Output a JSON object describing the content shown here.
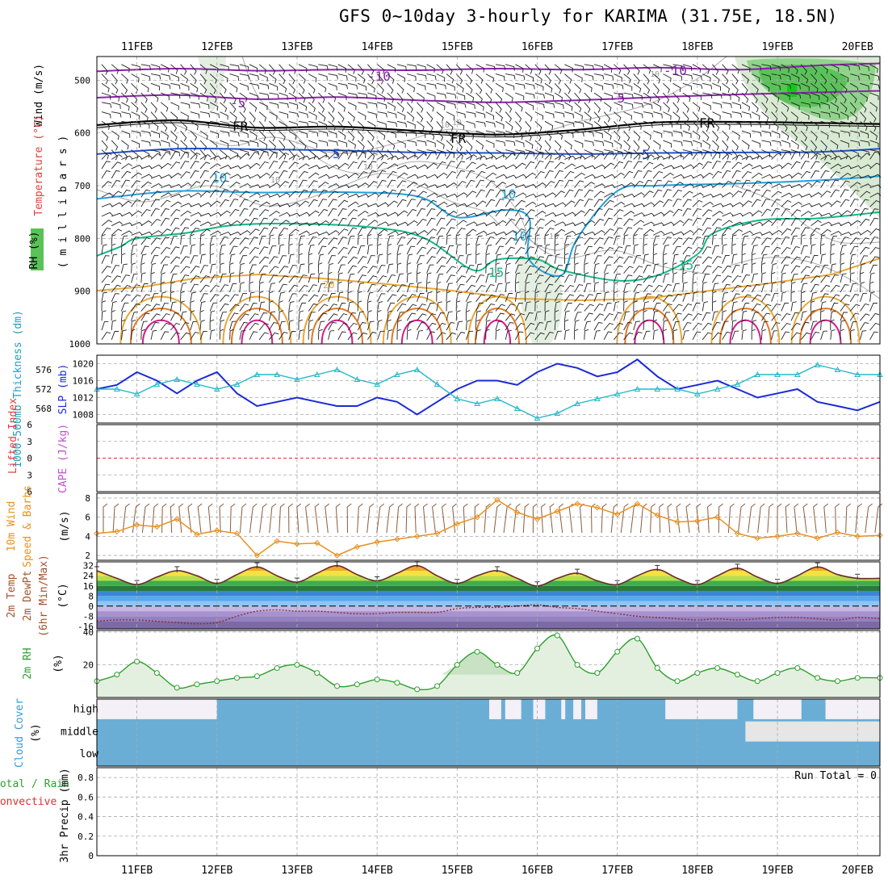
{
  "chart_data": {
    "type": "line",
    "title": "GFS 0~10day 3-hourly for KARIMA (31.75E, 18.5N)",
    "x_dates": [
      "11FEB",
      "12FEB",
      "13FEB",
      "14FEB",
      "15FEB",
      "16FEB",
      "17FEB",
      "18FEB",
      "19FEB",
      "20FEB"
    ],
    "x_range_days": [
      10.5,
      20.28
    ],
    "panels": {
      "upper_air": {
        "ylabel": [
          "RH (%)",
          "Temperature (°C)",
          "Wind (m/s)"
        ],
        "ylabel_right_text": "(millibars)",
        "y_ticks": [
          500,
          600,
          700,
          800,
          900,
          1000
        ],
        "y_range": [
          455,
          1000
        ],
        "isotherm_labels": [
          "-10",
          "-5",
          "FR",
          "5",
          "10",
          "15"
        ],
        "rh_contour_labels": [
          "10"
        ],
        "isotherms": [
          {
            "label": "-10",
            "color": "#8b22aa",
            "points": [
              [
                10.5,
                483
              ],
              [
                11.5,
                478
              ],
              [
                12.5,
                482
              ],
              [
                13.5,
                480
              ],
              [
                14.5,
                481
              ],
              [
                15.5,
                478
              ],
              [
                16.5,
                480
              ],
              [
                17.5,
                476
              ],
              [
                18.5,
                480
              ],
              [
                19.5,
                472
              ],
              [
                20.28,
                468
              ]
            ]
          },
          {
            "label": "-5",
            "color": "#8b22aa",
            "points": [
              [
                10.5,
                533
              ],
              [
                11.5,
                528
              ],
              [
                12.5,
                536
              ],
              [
                13.5,
                532
              ],
              [
                14.5,
                538
              ],
              [
                15.5,
                542
              ],
              [
                16.5,
                538
              ],
              [
                17.5,
                532
              ],
              [
                18.5,
                527
              ],
              [
                19.5,
                523
              ],
              [
                20.28,
                520
              ]
            ]
          },
          {
            "label": "FR",
            "color": "#000000",
            "points": [
              [
                10.5,
                585
              ],
              [
                11.5,
                576
              ],
              [
                12.5,
                590
              ],
              [
                13.5,
                588
              ],
              [
                14.5,
                596
              ],
              [
                15.5,
                603
              ],
              [
                16.5,
                594
              ],
              [
                17.5,
                580
              ],
              [
                18.5,
                579
              ],
              [
                19.5,
                581
              ],
              [
                20.28,
                583
              ]
            ]
          },
          {
            "label": "5",
            "color": "#1f4fcf",
            "points": [
              [
                10.5,
                640
              ],
              [
                11.5,
                630
              ],
              [
                12.5,
                631
              ],
              [
                13.5,
                633
              ],
              [
                14.5,
                637
              ],
              [
                15.5,
                638
              ],
              [
                16.5,
                640
              ],
              [
                17.5,
                638
              ],
              [
                18.5,
                637
              ],
              [
                19.5,
                636
              ],
              [
                20.28,
                630
              ]
            ]
          },
          {
            "label": "10",
            "color": "#1ea0dc",
            "points": [
              [
                10.5,
                725
              ],
              [
                11.5,
                710
              ],
              [
                12.5,
                713
              ],
              [
                13.5,
                712
              ],
              [
                14.5,
                720
              ],
              [
                15.0,
                760
              ],
              [
                15.6,
                746
              ],
              [
                15.9,
                762
              ],
              [
                15.9,
                840
              ],
              [
                16.3,
                870
              ],
              [
                16.5,
                800
              ],
              [
                17.0,
                710
              ],
              [
                17.5,
                700
              ],
              [
                18.5,
                696
              ],
              [
                19.5,
                690
              ],
              [
                20.28,
                682
              ]
            ]
          },
          {
            "label": "15",
            "color": "#13b887",
            "points": [
              [
                10.5,
                833
              ],
              [
                10.8,
                815
              ],
              [
                11.0,
                800
              ],
              [
                11.6,
                790
              ],
              [
                12.2,
                775
              ],
              [
                13.0,
                772
              ],
              [
                14.0,
                780
              ],
              [
                14.6,
                800
              ],
              [
                15.2,
                860
              ],
              [
                15.5,
                840
              ],
              [
                16.0,
                840
              ],
              [
                16.3,
                860
              ],
              [
                17.0,
                880
              ],
              [
                17.5,
                870
              ],
              [
                18.0,
                830
              ],
              [
                18.2,
                790
              ],
              [
                18.8,
                765
              ],
              [
                19.5,
                762
              ],
              [
                20.28,
                750
              ]
            ]
          }
        ]
      },
      "thickness_slp": {
        "ylabel_left": "1000-500mb Thickness (dm)",
        "ylabel_right": "SLP (mb)",
        "left_ticks": [
          568,
          572,
          576
        ],
        "right_ticks": [
          1008,
          1012,
          1016,
          1020
        ],
        "slp_range": [
          1006,
          1022
        ],
        "slp_series": {
          "name": "SLP (mb)",
          "color": "#1a2ad6",
          "x": [
            10.5,
            10.75,
            11.0,
            11.25,
            11.5,
            11.75,
            12.0,
            12.25,
            12.5,
            12.75,
            13.0,
            13.25,
            13.5,
            13.75,
            14.0,
            14.25,
            14.5,
            14.75,
            15.0,
            15.25,
            15.5,
            15.75,
            16.0,
            16.25,
            16.5,
            16.75,
            17.0,
            17.25,
            17.5,
            17.75,
            18.0,
            18.25,
            18.5,
            18.75,
            19.0,
            19.25,
            19.5,
            19.75,
            20.0,
            20.28
          ],
          "values": [
            1014,
            1015,
            1018,
            1016,
            1013,
            1016,
            1018,
            1013,
            1010,
            1011,
            1012,
            1011,
            1010,
            1010,
            1012,
            1011,
            1008,
            1011,
            1014,
            1016,
            1016,
            1015,
            1018,
            1020,
            1019,
            1017,
            1018,
            1021,
            1017,
            1014,
            1015,
            1016,
            1014,
            1012,
            1013,
            1014,
            1011,
            1010,
            1009,
            1011
          ]
        },
        "thickness_series": {
          "name": "1000-500mb Thickness (dm)",
          "color": "#25b8c8",
          "x": [
            10.5,
            10.75,
            11.0,
            11.25,
            11.5,
            11.75,
            12.0,
            12.25,
            12.5,
            12.75,
            13.0,
            13.25,
            13.5,
            13.75,
            14.0,
            14.25,
            14.5,
            14.75,
            15.0,
            15.25,
            15.5,
            15.75,
            16.0,
            16.25,
            16.5,
            16.75,
            17.0,
            17.25,
            17.5,
            17.75,
            18.0,
            18.25,
            18.5,
            18.75,
            19.0,
            19.25,
            19.5,
            19.75,
            20.0,
            20.28
          ],
          "values": [
            572,
            572,
            571,
            573,
            574,
            573,
            572,
            573,
            575,
            575,
            574,
            575,
            576,
            574,
            573,
            575,
            576,
            573,
            570,
            569,
            570,
            568,
            566,
            567,
            569,
            570,
            571,
            572,
            572,
            572,
            571,
            572,
            573,
            575,
            575,
            575,
            577,
            576,
            575,
            575
          ]
        }
      },
      "cape_li": {
        "ylabel_left": "Lifted Index",
        "ylabel_right": "CAPE (J/kg)",
        "y_ticks": [
          -6,
          -3,
          0,
          3,
          6
        ],
        "y_tick_labels": [
          "6",
          "3",
          "0",
          "3",
          "6"
        ],
        "zero_line_color": "#e03030"
      },
      "wind10m": {
        "ylabel": [
          "10m Wind Speed & Barbs",
          "(m/s)"
        ],
        "y_ticks": [
          2,
          4,
          6,
          8
        ],
        "y_range": [
          1.5,
          8.5
        ],
        "series": {
          "name": "10m Wind Speed",
          "color": "#e89020",
          "x": [
            10.5,
            10.75,
            11.0,
            11.25,
            11.5,
            11.75,
            12.0,
            12.25,
            12.5,
            12.75,
            13.0,
            13.25,
            13.5,
            13.75,
            14.0,
            14.25,
            14.5,
            14.75,
            15.0,
            15.25,
            15.5,
            15.75,
            16.0,
            16.25,
            16.5,
            16.75,
            17.0,
            17.25,
            17.5,
            17.75,
            18.0,
            18.25,
            18.5,
            18.75,
            19.0,
            19.25,
            19.5,
            19.75,
            20.0,
            20.28
          ],
          "values": [
            4.3,
            4.5,
            5.2,
            5.0,
            5.8,
            4.2,
            4.6,
            4.3,
            2.0,
            3.5,
            3.2,
            3.3,
            2.0,
            2.9,
            3.4,
            3.7,
            4.0,
            4.3,
            5.3,
            6.0,
            7.8,
            6.5,
            5.8,
            6.6,
            7.4,
            7.0,
            6.3,
            7.4,
            6.2,
            5.5,
            5.6,
            6.0,
            4.3,
            3.8,
            4.0,
            4.3,
            3.8,
            4.4,
            4.0,
            4.1
          ]
        }
      },
      "temp2m": {
        "ylabel": [
          "2m Temp",
          "2m DewPt",
          "(6hr Min/Max)",
          "(°C)"
        ],
        "y_ticks": [
          -16,
          -8,
          0,
          8,
          16,
          24,
          32
        ],
        "y_range": [
          -18,
          35
        ],
        "temp_series": {
          "name": "2m Temp",
          "x": [
            10.5,
            10.75,
            11.0,
            11.25,
            11.5,
            11.75,
            12.0,
            12.25,
            12.5,
            12.75,
            13.0,
            13.25,
            13.5,
            13.75,
            14.0,
            14.25,
            14.5,
            14.75,
            15.0,
            15.25,
            15.5,
            15.75,
            16.0,
            16.25,
            16.5,
            16.75,
            17.0,
            17.25,
            17.5,
            17.75,
            18.0,
            18.25,
            18.5,
            18.75,
            19.0,
            19.25,
            19.5,
            19.75,
            20.0,
            20.28
          ],
          "values": [
            28,
            22,
            17,
            23,
            28,
            24,
            18,
            25,
            31,
            24,
            19,
            26,
            32,
            25,
            20,
            26,
            32,
            24,
            18,
            24,
            28,
            22,
            16,
            22,
            26,
            20,
            17,
            24,
            29,
            22,
            17,
            24,
            30,
            23,
            18,
            24,
            31,
            25,
            22,
            22
          ]
        },
        "dewpt_series": {
          "name": "2m DewPt",
          "x": [
            10.5,
            10.75,
            11.0,
            11.25,
            11.5,
            11.75,
            12.0,
            12.25,
            12.5,
            12.75,
            13.0,
            13.25,
            13.5,
            13.75,
            14.0,
            14.25,
            14.5,
            14.75,
            15.0,
            15.25,
            15.5,
            15.75,
            16.0,
            16.25,
            16.5,
            16.75,
            17.0,
            17.25,
            17.5,
            17.75,
            18.0,
            18.25,
            18.5,
            18.75,
            19.0,
            19.25,
            19.5,
            19.75,
            20.0,
            20.28
          ],
          "values": [
            -12,
            -11,
            -11,
            -12,
            -13,
            -14,
            -13,
            -8,
            -4,
            -3,
            -4,
            -4,
            -5,
            -6,
            -6,
            -5,
            -5,
            -5,
            -2,
            -1,
            -1,
            0,
            1,
            -1,
            -2,
            -4,
            -6,
            -8,
            -9,
            -10,
            -11,
            -10,
            -11,
            -10,
            -9,
            -9,
            -10,
            -11,
            -9,
            -10
          ]
        }
      },
      "rh2m": {
        "ylabel": [
          "2m RH",
          "(%)"
        ],
        "y_ticks": [
          20,
          40
        ],
        "y_range": [
          0,
          41
        ],
        "series": {
          "name": "2m RH",
          "color": "#2e9e2e",
          "x": [
            10.5,
            10.75,
            11.0,
            11.25,
            11.5,
            11.75,
            12.0,
            12.25,
            12.5,
            12.75,
            13.0,
            13.25,
            13.5,
            13.75,
            14.0,
            14.25,
            14.5,
            14.75,
            15.0,
            15.25,
            15.5,
            15.75,
            16.0,
            16.25,
            16.5,
            16.75,
            17.0,
            17.25,
            17.5,
            17.75,
            18.0,
            18.25,
            18.5,
            18.75,
            19.0,
            19.25,
            19.5,
            19.75,
            20.0,
            20.28
          ],
          "values": [
            10,
            14,
            22,
            15,
            6,
            8,
            10,
            12,
            13,
            18,
            20,
            15,
            7,
            8,
            11,
            9,
            5,
            7,
            20,
            28,
            20,
            15,
            30,
            38,
            20,
            15,
            28,
            36,
            18,
            10,
            15,
            18,
            14,
            10,
            15,
            18,
            12,
            10,
            12,
            12
          ]
        }
      },
      "cloud_cover": {
        "ylabel": [
          "Cloud Cover",
          "(%)"
        ],
        "levels": [
          "high",
          "middle",
          "low"
        ],
        "cloud_color": "#6aaed6",
        "clear_color": "#f3f0f8",
        "high_clear_intervals": [
          [
            10.5,
            12.0
          ],
          [
            18.7,
            19.3
          ],
          [
            19.6,
            20.28
          ]
        ],
        "middle_clear_intervals": [
          [
            10.5,
            18.5
          ]
        ]
      },
      "precip": {
        "ylabel": [
          "3hr Precip (mm)"
        ],
        "ylabel_left": [
          "Total / Rain",
          "Convective"
        ],
        "y_ticks": [
          0,
          0.2,
          0.4,
          0.6,
          0.8
        ],
        "y_range": [
          0,
          0.9
        ],
        "run_total_label": "Run Total = 0",
        "values": []
      }
    }
  }
}
